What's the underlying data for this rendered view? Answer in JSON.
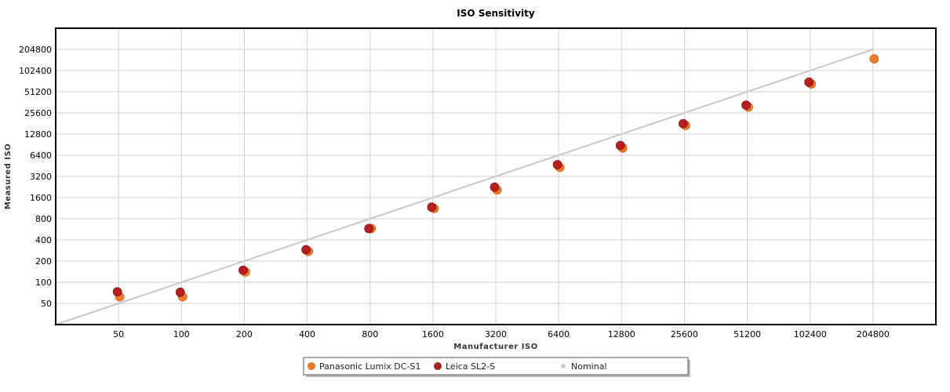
{
  "chart_data": {
    "type": "scatter",
    "title": "ISO Sensitivity",
    "xlabel": "Manufacturer ISO",
    "ylabel": "Measured ISO",
    "x_scale": "log2",
    "y_scale": "log2",
    "x_ticks": [
      "50",
      "100",
      "200",
      "400",
      "800",
      "1600",
      "3200",
      "6400",
      "12800",
      "25600",
      "51200",
      "102400",
      "204800"
    ],
    "y_ticks": [
      "50",
      "100",
      "200",
      "400",
      "800",
      "1600",
      "3200",
      "6400",
      "12800",
      "25600",
      "51200",
      "102400",
      "204800"
    ],
    "xlim": [
      25,
      409600
    ],
    "ylim": [
      25,
      409600
    ],
    "grid": true,
    "legend_position": "bottom-center",
    "series": [
      {
        "name": "Panasonic Lumix DC-S1",
        "color": "#f07a2a",
        "x": [
          50,
          100,
          200,
          400,
          800,
          1600,
          3200,
          6400,
          12800,
          25600,
          51200,
          102400,
          204800
        ],
        "y": [
          62,
          62,
          140,
          275,
          580,
          1120,
          2050,
          4300,
          8100,
          17000,
          31000,
          66000,
          150000
        ]
      },
      {
        "name": "Leica SL2-S",
        "color": "#b5201e",
        "x": [
          50,
          100,
          200,
          400,
          800,
          1600,
          3200,
          6400,
          12800,
          25600,
          51200,
          102400
        ],
        "y": [
          73,
          72,
          148,
          290,
          580,
          1170,
          2250,
          4700,
          8800,
          18000,
          33000,
          70000
        ]
      },
      {
        "name": "Nominal",
        "color": "#c8c8c8",
        "x": [
          25,
          204800
        ],
        "y": [
          25,
          204800
        ]
      }
    ]
  }
}
